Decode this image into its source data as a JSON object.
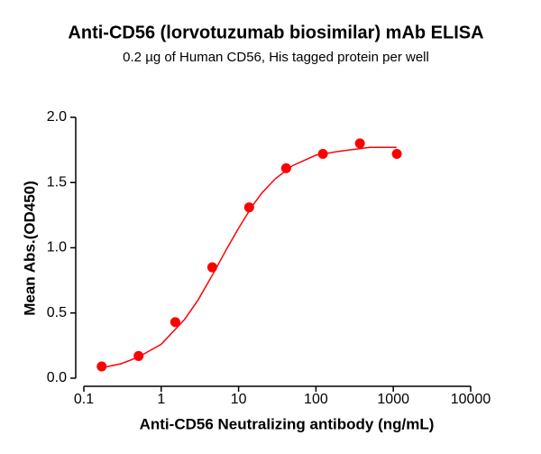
{
  "chart_data": {
    "type": "scatter",
    "title": "Anti-CD56 (lorvotuzumab biosimilar) mAb ELISA",
    "subtitle": "0.2 µg of Human CD56, His tagged protein per well",
    "x_label": "Anti-CD56 Neutralizing antibody (ng/mL)",
    "y_label": "Mean Abs.(OD450)",
    "x_scale": "log",
    "color": "#ff0000",
    "x": [
      0.17,
      0.51,
      1.52,
      4.57,
      13.7,
      41.2,
      123,
      370,
      1111
    ],
    "values": [
      0.09,
      0.17,
      0.43,
      0.85,
      1.31,
      1.61,
      1.72,
      1.8,
      1.72
    ],
    "fit_curve": {
      "x": [
        0.17,
        0.3,
        0.5,
        1,
        2,
        3,
        5,
        7,
        10,
        15,
        20,
        30,
        50,
        100,
        200,
        500,
        1100
      ],
      "values": [
        0.08,
        0.11,
        0.16,
        0.26,
        0.45,
        0.6,
        0.83,
        0.99,
        1.15,
        1.32,
        1.42,
        1.53,
        1.63,
        1.71,
        1.74,
        1.77,
        1.77
      ]
    },
    "xlim": [
      0.1,
      10000
    ],
    "xticks": [
      0.1,
      1,
      10,
      100,
      1000,
      10000
    ],
    "ylim": [
      0,
      2
    ],
    "yticks": [
      {
        "value": 0,
        "label": "0.0"
      },
      0.5,
      {
        "value": 1,
        "label": "1.0"
      },
      1.5,
      {
        "value": 2,
        "label": "2.0"
      }
    ]
  }
}
